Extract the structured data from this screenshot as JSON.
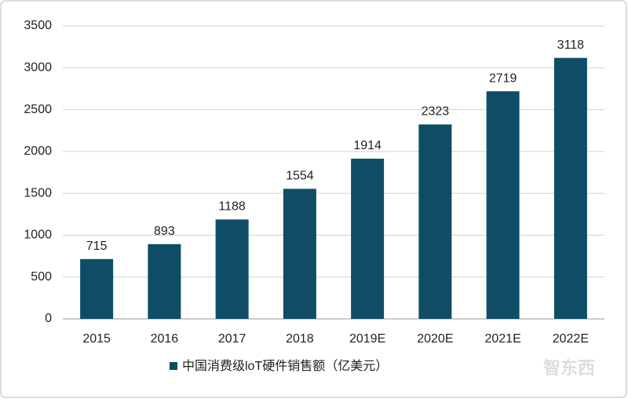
{
  "chart_data": {
    "type": "bar",
    "categories": [
      "2015",
      "2016",
      "2017",
      "2018",
      "2019E",
      "2020E",
      "2021E",
      "2022E"
    ],
    "series": [
      {
        "name": "中国消费级loT硬件销售额（亿美元）",
        "color": "#0f4d66",
        "values": [
          715,
          893,
          1188,
          1554,
          1914,
          2323,
          2719,
          3118
        ]
      }
    ],
    "ylim": [
      0,
      3500
    ],
    "yticks": [
      0,
      500,
      1000,
      1500,
      2000,
      2500,
      3000,
      3500
    ],
    "grid": true,
    "legend": "bottom",
    "watermark": "智东西"
  }
}
